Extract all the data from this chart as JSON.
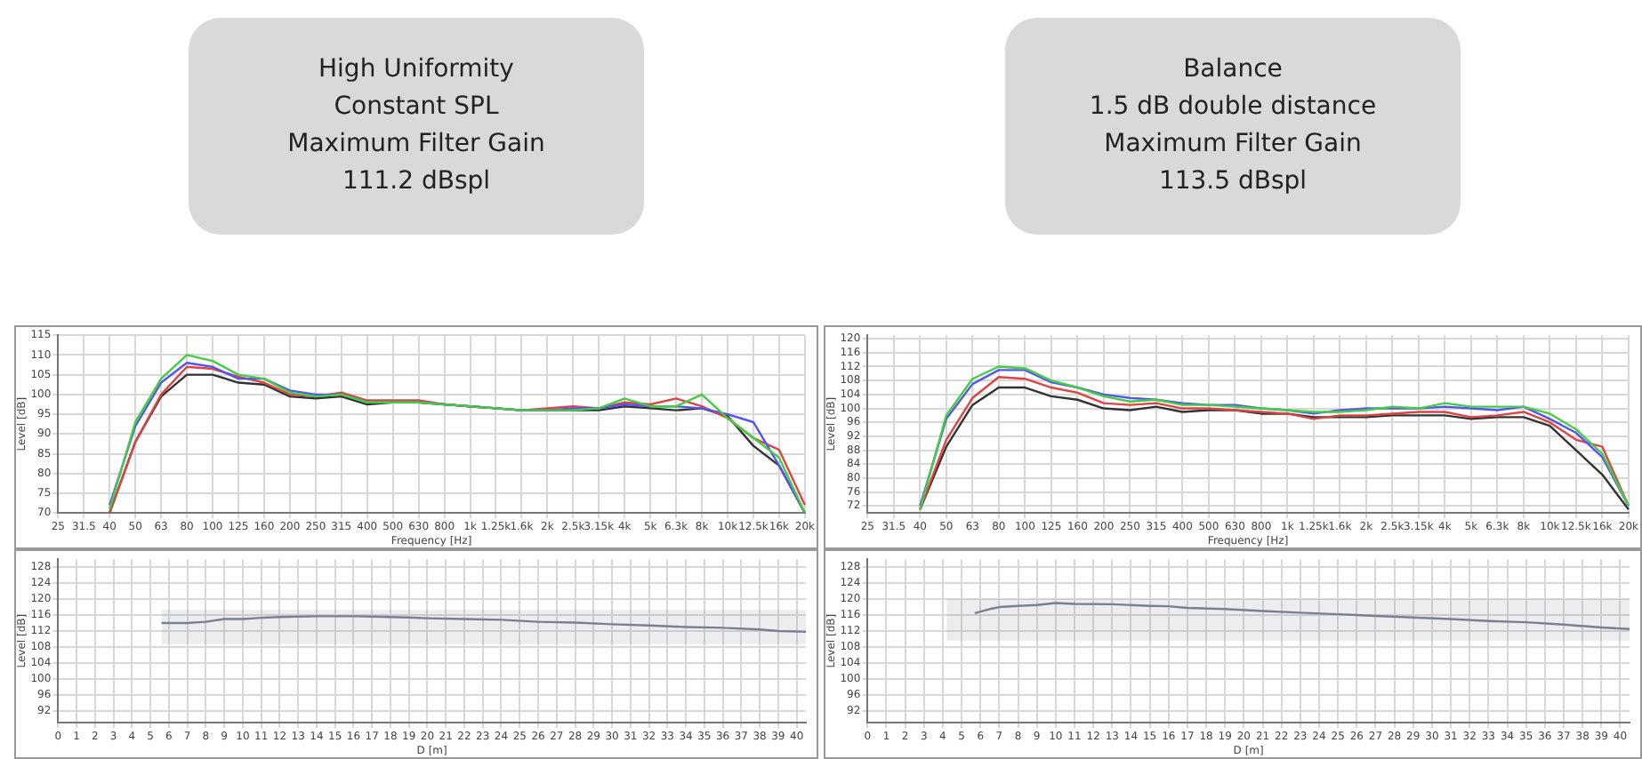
{
  "chart_data": [
    {
      "type": "line",
      "title": "High Uniformity\nConstant SPL\nMaximum Filter Gain\n111.2 dBspl",
      "xlabel": "Frequency [Hz]",
      "ylabel": "Level [dB]",
      "categories": [
        "25",
        "31.5",
        "40",
        "50",
        "63",
        "80",
        "100",
        "125",
        "160",
        "200",
        "250",
        "315",
        "400",
        "500",
        "630",
        "800",
        "1k",
        "1.25k",
        "1.6k",
        "2k",
        "2.5k",
        "3.15k",
        "4k",
        "5k",
        "6.3k",
        "8k",
        "10k",
        "12.5k",
        "16k",
        "20k"
      ],
      "ylim": [
        70,
        115
      ],
      "yticks": [
        70,
        75,
        80,
        85,
        90,
        95,
        100,
        105,
        110,
        115
      ],
      "grid": true,
      "legend": false,
      "series": [
        {
          "color": "#44cc44",
          "values": [
            null,
            null,
            71,
            93,
            104,
            110,
            108.5,
            105,
            104,
            100.5,
            99.5,
            100,
            98,
            98,
            98,
            97.5,
            97,
            96.5,
            96,
            96,
            96,
            96.5,
            99,
            97,
            97,
            100,
            94,
            89,
            84,
            70
          ]
        },
        {
          "color": "#5555ee",
          "values": [
            null,
            null,
            72,
            92,
            103,
            108,
            107,
            104,
            104,
            101,
            100,
            100,
            98,
            98,
            98,
            97.5,
            97,
            96.5,
            96,
            96,
            96.5,
            96.5,
            97.5,
            97,
            97,
            96.5,
            95,
            93,
            82,
            70
          ]
        },
        {
          "color": "#dd4444",
          "values": [
            null,
            null,
            70,
            88,
            100,
            107,
            106.5,
            104.5,
            103,
            100,
            99.5,
            100.5,
            98.5,
            98.5,
            98.5,
            97.5,
            97,
            96.5,
            96,
            96.5,
            97,
            96.5,
            98,
            97.5,
            99,
            97,
            94,
            89,
            86,
            72
          ]
        },
        {
          "color": "#333333",
          "values": [
            null,
            null,
            70,
            88,
            99.5,
            105,
            105,
            103,
            102.5,
            99.5,
            99,
            99.5,
            97.5,
            98,
            98,
            97.5,
            97,
            96.5,
            96,
            96,
            96,
            96,
            97,
            96.5,
            96,
            96.5,
            94.5,
            87,
            82,
            70
          ]
        }
      ]
    },
    {
      "type": "line",
      "title": "Balance\n1.5 dB double distance\nMaximum Filter Gain\n113.5 dBspl",
      "xlabel": "Frequency [Hz]",
      "ylabel": "Level [dB]",
      "categories": [
        "25",
        "31.5",
        "40",
        "50",
        "63",
        "80",
        "100",
        "125",
        "160",
        "200",
        "250",
        "315",
        "400",
        "500",
        "630",
        "800",
        "1k",
        "1.25k",
        "1.6k",
        "2k",
        "2.5k",
        "3.15k",
        "4k",
        "5k",
        "6.3k",
        "8k",
        "10k",
        "12.5k",
        "16k",
        "20k"
      ],
      "ylim": [
        70,
        121
      ],
      "yticks": [
        72,
        76,
        80,
        84,
        88,
        92,
        96,
        100,
        104,
        108,
        112,
        116,
        120
      ],
      "grid": true,
      "legend": false,
      "series": [
        {
          "color": "#44cc44",
          "values": [
            null,
            null,
            71,
            98,
            108.5,
            112,
            111.5,
            108,
            106,
            103.5,
            102,
            102.5,
            101,
            101,
            100.5,
            100,
            99.5,
            99,
            99,
            99.5,
            100.5,
            100,
            101.5,
            100.5,
            100.5,
            100.5,
            98.5,
            94,
            87,
            72
          ]
        },
        {
          "color": "#5555ee",
          "values": [
            null,
            null,
            72,
            97,
            107,
            111,
            111,
            107.5,
            106,
            104,
            103,
            102.5,
            101.5,
            101,
            101,
            100,
            99.5,
            98.5,
            99.5,
            100,
            100,
            100,
            100.5,
            100,
            99.5,
            100.5,
            97,
            93,
            86,
            72
          ]
        },
        {
          "color": "#dd4444",
          "values": [
            null,
            null,
            71,
            91,
            103,
            109,
            108.5,
            106,
            104.5,
            101.5,
            101,
            101.5,
            100,
            100,
            99.5,
            99,
            98.5,
            97,
            98,
            98,
            98.5,
            99,
            99,
            97.5,
            98,
            99,
            96,
            91,
            89,
            72
          ]
        },
        {
          "color": "#333333",
          "values": [
            null,
            null,
            71,
            89,
            101,
            106,
            106,
            103.5,
            102.5,
            100,
            99.5,
            100.5,
            99,
            99.5,
            99.5,
            98.5,
            98.5,
            97.5,
            97.5,
            97.5,
            98,
            98,
            98,
            97,
            97.5,
            97.5,
            95,
            88,
            81,
            71
          ]
        }
      ]
    },
    {
      "type": "line",
      "xlabel": "D [m]",
      "ylabel": "Level [dB]",
      "xlim": [
        0,
        40.5
      ],
      "xticks": [
        0,
        1,
        2,
        3,
        4,
        5,
        6,
        7,
        8,
        9,
        10,
        11,
        12,
        13,
        14,
        15,
        16,
        17,
        18,
        19,
        20,
        21,
        22,
        23,
        24,
        25,
        26,
        27,
        28,
        29,
        30,
        31,
        32,
        33,
        34,
        35,
        36,
        37,
        38,
        39,
        40
      ],
      "ylim": [
        89,
        130
      ],
      "yticks": [
        92,
        96,
        100,
        104,
        108,
        112,
        116,
        120,
        124,
        128
      ],
      "grid": true,
      "legend": false,
      "series": [
        {
          "color": "#7a8090",
          "x": [
            5.6,
            7,
            8,
            9,
            10,
            11,
            12,
            14,
            16,
            17,
            19,
            20,
            22,
            24,
            26,
            28,
            30,
            32,
            34,
            36,
            38,
            39,
            40.5
          ],
          "values": [
            114,
            114,
            114.3,
            115,
            115,
            115.3,
            115.5,
            115.7,
            115.7,
            115.6,
            115.4,
            115.2,
            115,
            114.8,
            114.3,
            114.1,
            113.7,
            113.4,
            113,
            112.8,
            112.4,
            112,
            111.8
          ],
          "lower": [
            108.7,
            108.7,
            108.7,
            108.7,
            108.7,
            108.7,
            108.7,
            108.7,
            108.7,
            108.7,
            108.7,
            108.7,
            108.7,
            108.7,
            108.7,
            108.7,
            108.7,
            108.7,
            108.7,
            108.7,
            108.7,
            108.7,
            108.7
          ],
          "upper": [
            117.3,
            117.3,
            117.3,
            117.3,
            117.3,
            117.3,
            117.3,
            117.3,
            117.3,
            117.3,
            117.3,
            117.3,
            117.3,
            117.3,
            117.3,
            117.3,
            117.3,
            117.3,
            117.3,
            117.3,
            117.3,
            117.3,
            117.3
          ]
        }
      ]
    },
    {
      "type": "line",
      "xlabel": "D [m]",
      "ylabel": "Level [dB]",
      "xlim": [
        0,
        40.5
      ],
      "xticks": [
        0,
        1,
        2,
        3,
        4,
        5,
        6,
        7,
        8,
        9,
        10,
        11,
        12,
        13,
        14,
        15,
        16,
        17,
        18,
        19,
        20,
        21,
        22,
        23,
        24,
        25,
        26,
        27,
        28,
        29,
        30,
        31,
        32,
        33,
        34,
        35,
        36,
        37,
        38,
        39,
        40
      ],
      "ylim": [
        89,
        130
      ],
      "yticks": [
        92,
        96,
        100,
        104,
        108,
        112,
        116,
        120,
        124,
        128
      ],
      "grid": true,
      "legend": false,
      "series": [
        {
          "color": "#7a8090",
          "x": [
            4.2,
            5.7,
            6.5,
            7,
            8,
            9,
            10,
            11,
            13,
            15,
            16,
            17,
            19,
            21,
            23,
            25,
            27,
            29,
            31,
            33,
            35,
            37,
            39,
            40.5
          ],
          "values": [
            null,
            116.5,
            117.5,
            118,
            118.3,
            118.5,
            119,
            118.8,
            118.7,
            118.3,
            118.2,
            117.8,
            117.5,
            117,
            116.6,
            116.2,
            115.8,
            115.4,
            115,
            114.5,
            114.2,
            113.6,
            112.9,
            112.5
          ],
          "lower": [
            109.6,
            109.6,
            109.6,
            109.6,
            109.6,
            109.6,
            109.6,
            109.6,
            109.6,
            109.6,
            109.6,
            109.6,
            109.6,
            109.6,
            109.6,
            109.6,
            109.6,
            109.6,
            109.6,
            109.6,
            109.6,
            109.6,
            109.6,
            109.6
          ],
          "upper": [
            120,
            120,
            120,
            120,
            120,
            120,
            120,
            120,
            120,
            120,
            120,
            120,
            120,
            120,
            120,
            120,
            120,
            120,
            120,
            120,
            120,
            120,
            120,
            120
          ]
        }
      ]
    }
  ]
}
